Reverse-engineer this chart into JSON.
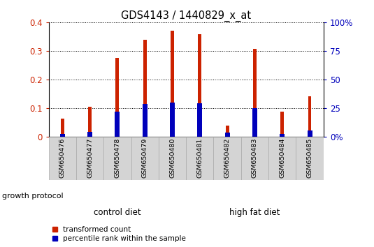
{
  "title": "GDS4143 / 1440829_x_at",
  "samples": [
    "GSM650476",
    "GSM650477",
    "GSM650478",
    "GSM650479",
    "GSM650480",
    "GSM650481",
    "GSM650482",
    "GSM650483",
    "GSM650484",
    "GSM650485"
  ],
  "transformed_count": [
    0.065,
    0.105,
    0.275,
    0.338,
    0.37,
    0.358,
    0.04,
    0.308,
    0.088,
    0.142
  ],
  "percentile_rank_scaled": [
    0.01,
    0.018,
    0.088,
    0.115,
    0.12,
    0.118,
    0.015,
    0.1,
    0.012,
    0.022
  ],
  "groups": [
    {
      "label": "control diet",
      "start": 0,
      "end": 5,
      "color": "#c8f0c8"
    },
    {
      "label": "high fat diet",
      "start": 5,
      "end": 10,
      "color": "#33cc33"
    }
  ],
  "bar_color_red": "#cc2200",
  "bar_color_blue": "#0000bb",
  "ylim_left": [
    0,
    0.4
  ],
  "ylim_right": [
    0,
    100
  ],
  "yticks_left": [
    0,
    0.1,
    0.2,
    0.3,
    0.4
  ],
  "yticks_right": [
    0,
    25,
    50,
    75,
    100
  ],
  "ytick_labels_right": [
    "0%",
    "25",
    "50",
    "75",
    "100%"
  ],
  "xlabel_group": "growth protocol",
  "legend_red": "transformed count",
  "legend_blue": "percentile rank within the sample",
  "background_color": "#ffffff",
  "label_color_left": "#cc2200",
  "label_color_right": "#0000bb",
  "tick_bg_color": "#d4d4d4",
  "tick_border_color": "#aaaaaa"
}
